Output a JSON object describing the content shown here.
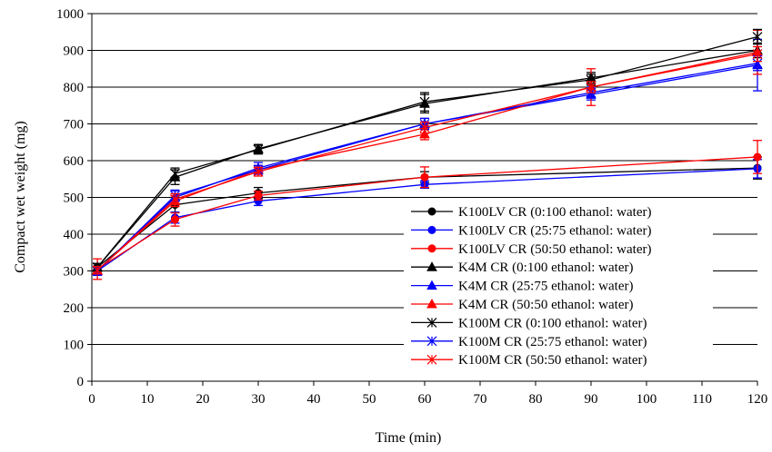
{
  "chart_data": {
    "type": "line",
    "title": "",
    "xlabel": "Time (min)",
    "ylabel": "Compact wet weight (mg)",
    "xlim": [
      0,
      120
    ],
    "ylim": [
      0,
      1000
    ],
    "xticks": [
      0,
      10,
      20,
      30,
      40,
      50,
      60,
      70,
      80,
      90,
      100,
      110,
      120
    ],
    "yticks": [
      0,
      100,
      200,
      300,
      400,
      500,
      600,
      700,
      800,
      900,
      1000
    ],
    "grid": "horizontal",
    "legend_position": "bottom-right",
    "x": [
      1,
      15,
      30,
      60,
      90,
      120
    ],
    "series": [
      {
        "name": "K100LV CR (0:100 ethanol: water)",
        "color": "#000000",
        "marker": "circle",
        "x": [
          1,
          15,
          30,
          60,
          120
        ],
        "values": [
          310,
          480,
          512,
          555,
          580
        ],
        "errors": [
          10,
          20,
          15,
          15,
          30
        ]
      },
      {
        "name": "K100LV CR (25:75 ethanol: water)",
        "color": "#0000ff",
        "marker": "circle",
        "x": [
          1,
          15,
          30,
          60,
          120
        ],
        "values": [
          300,
          445,
          490,
          535,
          578
        ],
        "errors": [
          12,
          15,
          12,
          10,
          25
        ]
      },
      {
        "name": "K100LV CR (50:50 ethanol: water)",
        "color": "#ff0000",
        "marker": "circle",
        "x": [
          1,
          15,
          30,
          60,
          120
        ],
        "values": [
          305,
          440,
          505,
          555,
          610
        ],
        "errors": [
          28,
          18,
          12,
          28,
          45
        ]
      },
      {
        "name": "K4M CR (0:100 ethanol: water)",
        "color": "#000000",
        "marker": "triangle",
        "x": [
          1,
          15,
          30,
          60,
          90,
          120
        ],
        "values": [
          310,
          555,
          632,
          755,
          825,
          900
        ],
        "errors": [
          10,
          20,
          12,
          25,
          15,
          20
        ]
      },
      {
        "name": "K4M CR (25:75 ethanol: water)",
        "color": "#0000ff",
        "marker": "triangle",
        "x": [
          1,
          15,
          30,
          60,
          90,
          120
        ],
        "values": [
          300,
          500,
          580,
          700,
          780,
          860
        ],
        "errors": [
          10,
          18,
          15,
          15,
          15,
          70
        ]
      },
      {
        "name": "K4M CR (50:50 ethanol: water)",
        "color": "#ff0000",
        "marker": "triangle",
        "x": [
          1,
          15,
          30,
          60,
          90,
          120
        ],
        "values": [
          302,
          490,
          575,
          672,
          800,
          895
        ],
        "errors": [
          10,
          15,
          12,
          15,
          50,
          60
        ]
      },
      {
        "name": "K100M CR (0:100 ethanol: water)",
        "color": "#000000",
        "marker": "star",
        "x": [
          1,
          15,
          30,
          60,
          90,
          120
        ],
        "values": [
          310,
          565,
          630,
          760,
          820,
          937
        ],
        "errors": [
          10,
          15,
          12,
          25,
          15,
          20
        ]
      },
      {
        "name": "K100M CR (25:75 ethanol: water)",
        "color": "#0000ff",
        "marker": "star",
        "x": [
          1,
          15,
          30,
          60,
          90,
          120
        ],
        "values": [
          300,
          505,
          575,
          700,
          785,
          865
        ],
        "errors": [
          10,
          15,
          12,
          15,
          15,
          20
        ]
      },
      {
        "name": "K100M CR (50:50 ethanol: water)",
        "color": "#ff0000",
        "marker": "star",
        "x": [
          1,
          15,
          30,
          60,
          90,
          120
        ],
        "values": [
          302,
          495,
          570,
          690,
          800,
          890
        ],
        "errors": [
          10,
          15,
          12,
          15,
          15,
          20
        ]
      }
    ]
  }
}
